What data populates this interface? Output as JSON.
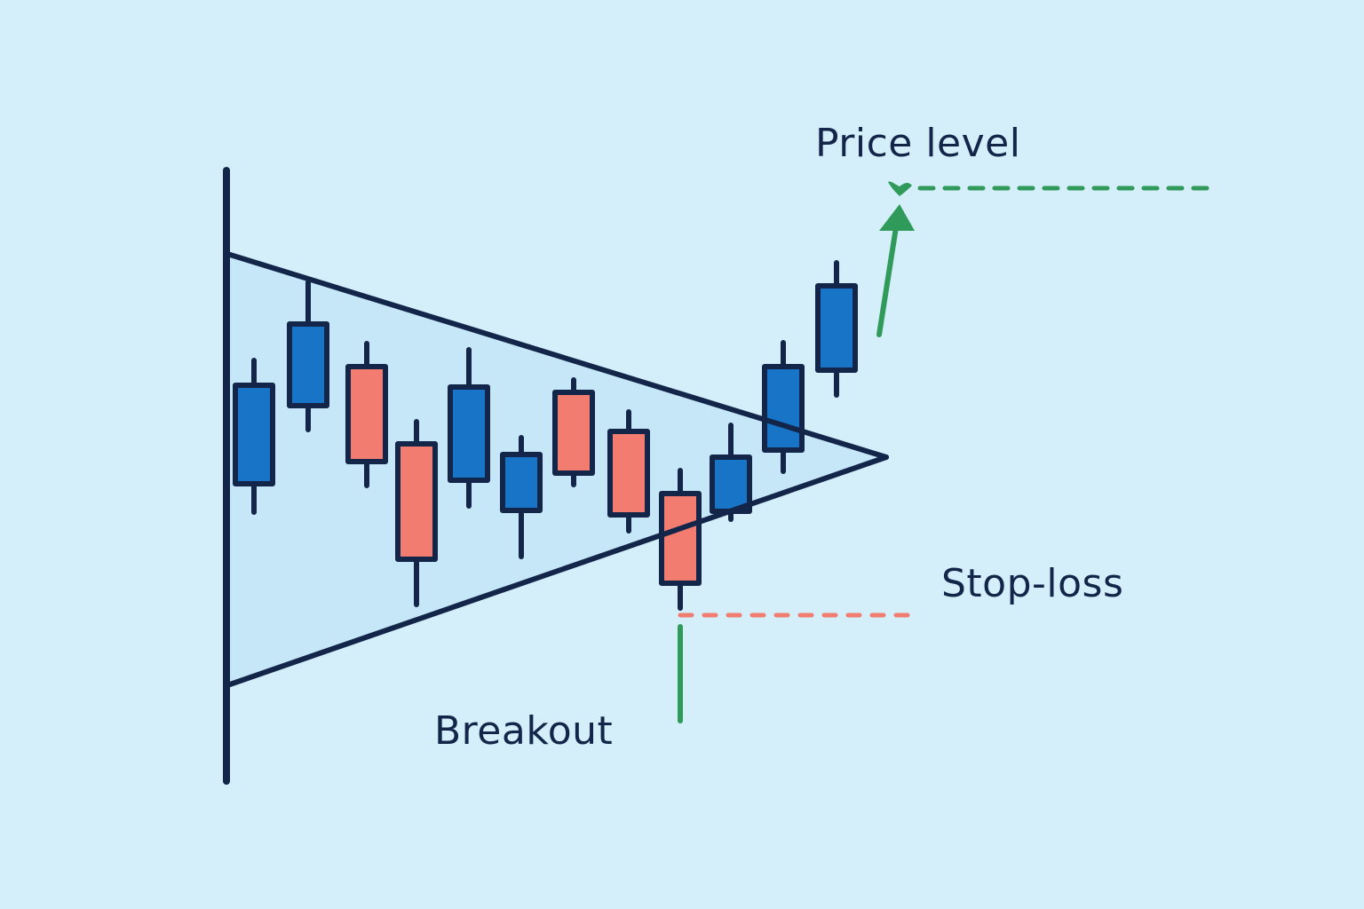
{
  "labels": {
    "price_level": "Price level",
    "stop_loss": "Stop-loss",
    "breakout": "Breakout"
  },
  "colors": {
    "background": "#d4effa",
    "outline": "#13264a",
    "bullish": "#1874c6",
    "bearish": "#f27c6f",
    "target_arrow": "#2f9a5a",
    "stop_line": "#f07d70",
    "breakout_marker": "#2f9a5a",
    "triangle_fill": "#c6e7f7"
  },
  "candles": [
    {
      "direction": "bullish"
    },
    {
      "direction": "bullish"
    },
    {
      "direction": "bearish"
    },
    {
      "direction": "bearish"
    },
    {
      "direction": "bullish"
    },
    {
      "direction": "bullish"
    },
    {
      "direction": "bearish"
    },
    {
      "direction": "bearish"
    },
    {
      "direction": "bearish"
    },
    {
      "direction": "bullish"
    },
    {
      "direction": "bullish"
    },
    {
      "direction": "bullish"
    }
  ]
}
